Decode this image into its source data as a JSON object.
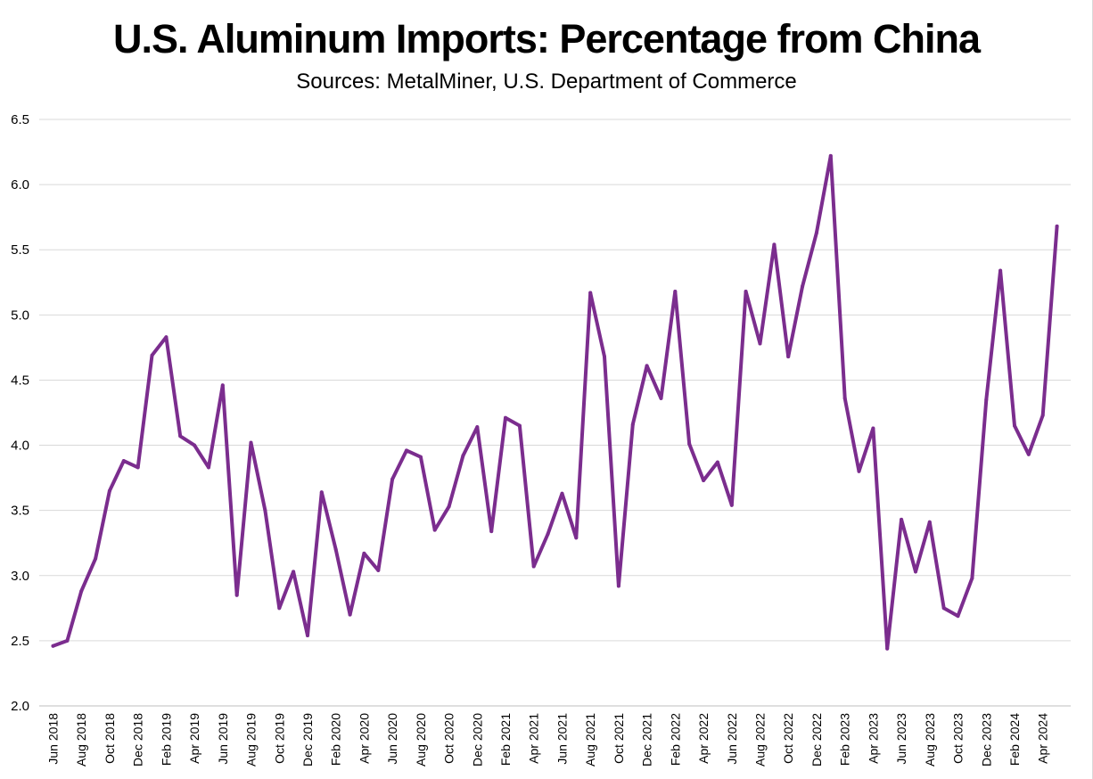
{
  "chart_data": {
    "type": "line",
    "title": "U.S. Aluminum Imports: Percentage from China",
    "subtitle": "Sources: MetalMiner, U.S. Department of Commerce",
    "xlabel": "",
    "ylabel": "",
    "ylim": [
      2.0,
      6.5
    ],
    "yticks": [
      "2.0",
      "2.5",
      "3.0",
      "3.5",
      "4.0",
      "4.5",
      "5.0",
      "5.5",
      "6.0",
      "6.5"
    ],
    "grid": true,
    "colors": {
      "line": "#7b2d8e",
      "grid": "#d9d9d9",
      "axis": "#bfbfbf"
    },
    "categories": [
      "Jun 2018",
      "Jul 2018",
      "Aug 2018",
      "Sep 2018",
      "Oct 2018",
      "Nov 2018",
      "Dec 2018",
      "Jan 2019",
      "Feb 2019",
      "Mar 2019",
      "Apr 2019",
      "May 2019",
      "Jun 2019",
      "Jul 2019",
      "Aug 2019",
      "Sep 2019",
      "Oct 2019",
      "Nov 2019",
      "Dec 2019",
      "Jan 2020",
      "Feb 2020",
      "Mar 2020",
      "Apr 2020",
      "May 2020",
      "Jun 2020",
      "Jul 2020",
      "Aug 2020",
      "Sep 2020",
      "Oct 2020",
      "Nov 2020",
      "Dec 2020",
      "Jan 2021",
      "Feb 2021",
      "Mar 2021",
      "Apr 2021",
      "May 2021",
      "Jun 2021",
      "Jul 2021",
      "Aug 2021",
      "Sep 2021",
      "Oct 2021",
      "Nov 2021",
      "Dec 2021",
      "Jan 2022",
      "Feb 2022",
      "Mar 2022",
      "Apr 2022",
      "May 2022",
      "Jun 2022",
      "Jul 2022",
      "Aug 2022",
      "Sep 2022",
      "Oct 2022",
      "Nov 2022",
      "Dec 2022",
      "Jan 2023",
      "Feb 2023",
      "Mar 2023",
      "Apr 2023",
      "May 2023",
      "Jun 2023",
      "Jul 2023",
      "Aug 2023",
      "Sep 2023",
      "Oct 2023",
      "Nov 2023",
      "Dec 2023",
      "Jan 2024",
      "Feb 2024",
      "Mar 2024",
      "Apr 2024",
      "May 2024"
    ],
    "xtick_labels": [
      "Jun 2018",
      "Aug 2018",
      "Oct 2018",
      "Dec 2018",
      "Feb 2019",
      "Apr 2019",
      "Jun 2019",
      "Aug 2019",
      "Oct 2019",
      "Dec 2019",
      "Feb 2020",
      "Apr 2020",
      "Jun 2020",
      "Aug 2020",
      "Oct 2020",
      "Dec 2020",
      "Feb 2021",
      "Apr 2021",
      "Jun 2021",
      "Aug 2021",
      "Oct 2021",
      "Dec 2021",
      "Feb 2022",
      "Apr 2022",
      "Jun 2022",
      "Aug 2022",
      "Oct 2022",
      "Dec 2022",
      "Feb 2023",
      "Apr 2023",
      "Jun 2023",
      "Aug 2023",
      "Oct 2023",
      "Dec 2023",
      "Feb 2024",
      "Apr 2024"
    ],
    "series": [
      {
        "name": "Percentage from China",
        "values": [
          2.46,
          2.5,
          2.88,
          3.13,
          3.65,
          3.88,
          3.83,
          4.69,
          4.83,
          4.07,
          4.0,
          3.83,
          4.46,
          2.85,
          4.02,
          3.5,
          2.75,
          3.03,
          2.54,
          3.64,
          3.2,
          2.7,
          3.17,
          3.04,
          3.74,
          3.96,
          3.91,
          3.35,
          3.53,
          3.92,
          4.14,
          3.34,
          4.21,
          4.15,
          3.07,
          3.32,
          3.63,
          3.29,
          5.17,
          4.68,
          2.92,
          4.16,
          4.61,
          4.36,
          5.18,
          4.01,
          3.73,
          3.87,
          3.54,
          5.18,
          4.78,
          5.54,
          4.68,
          5.22,
          5.63,
          6.22,
          4.36,
          3.8,
          4.13,
          2.44,
          3.43,
          3.03,
          3.41,
          2.75,
          2.69,
          2.98,
          4.35,
          5.34,
          4.15,
          3.93,
          4.23,
          5.68
        ]
      }
    ]
  }
}
